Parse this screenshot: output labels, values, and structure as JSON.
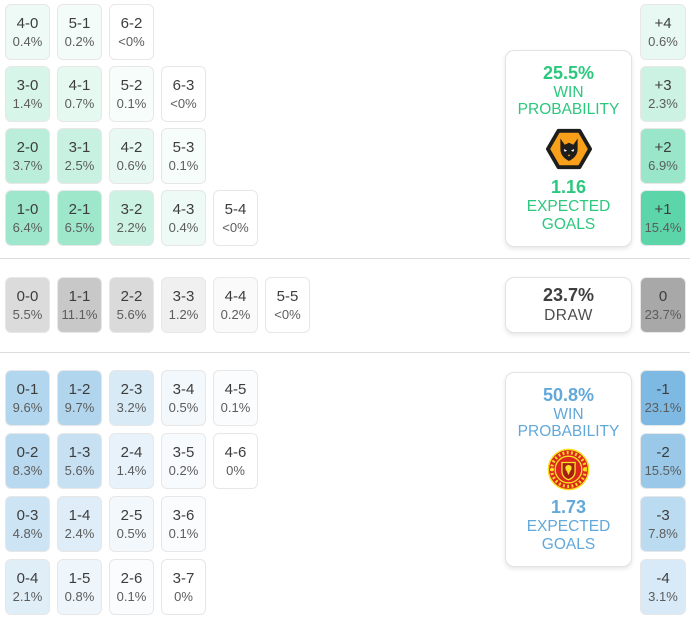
{
  "chart_data": {
    "type": "heatmap",
    "title": "Correct score probability matrix with win probabilities and expected goals",
    "layout": {
      "grid": "score cells left, goal-difference column right, summary boxes center-right"
    },
    "sections": [
      {
        "name": "home-win",
        "crest_icon": "wolves-crest",
        "accent_color": "#2bc87d",
        "cell_base_color": "#5cd6a8",
        "max_value": 15.4,
        "win_probability": "25.5%",
        "win_probability_label": [
          "WIN",
          "PROBABILITY"
        ],
        "expected_goals": "1.16",
        "expected_goals_label": [
          "EXPECTED",
          "GOALS"
        ],
        "score_rows": [
          [
            {
              "score": "4-0",
              "pct": "0.4%",
              "value": 0.4
            },
            {
              "score": "5-1",
              "pct": "0.2%",
              "value": 0.2
            },
            {
              "score": "6-2",
              "pct": "<0%",
              "value": 0
            }
          ],
          [
            {
              "score": "3-0",
              "pct": "1.4%",
              "value": 1.4
            },
            {
              "score": "4-1",
              "pct": "0.7%",
              "value": 0.7
            },
            {
              "score": "5-2",
              "pct": "0.1%",
              "value": 0.1
            },
            {
              "score": "6-3",
              "pct": "<0%",
              "value": 0
            }
          ],
          [
            {
              "score": "2-0",
              "pct": "3.7%",
              "value": 3.7
            },
            {
              "score": "3-1",
              "pct": "2.5%",
              "value": 2.5
            },
            {
              "score": "4-2",
              "pct": "0.6%",
              "value": 0.6
            },
            {
              "score": "5-3",
              "pct": "0.1%",
              "value": 0.1
            }
          ],
          [
            {
              "score": "1-0",
              "pct": "6.4%",
              "value": 6.4
            },
            {
              "score": "2-1",
              "pct": "6.5%",
              "value": 6.5
            },
            {
              "score": "3-2",
              "pct": "2.2%",
              "value": 2.2
            },
            {
              "score": "4-3",
              "pct": "0.4%",
              "value": 0.4
            },
            {
              "score": "5-4",
              "pct": "<0%",
              "value": 0
            }
          ]
        ],
        "goal_diff": [
          {
            "diff": "+4",
            "pct": "0.6%",
            "value": 0.6
          },
          {
            "diff": "+3",
            "pct": "2.3%",
            "value": 2.3
          },
          {
            "diff": "+2",
            "pct": "6.9%",
            "value": 6.9
          },
          {
            "diff": "+1",
            "pct": "15.4%",
            "value": 15.4
          }
        ]
      },
      {
        "name": "draw",
        "accent_color": "#3f3f3f",
        "cell_base_color": "#a8a8a8",
        "max_value": 23.7,
        "probability": "23.7%",
        "label": "DRAW",
        "score_rows": [
          [
            {
              "score": "0-0",
              "pct": "5.5%",
              "value": 5.5
            },
            {
              "score": "1-1",
              "pct": "11.1%",
              "value": 11.1
            },
            {
              "score": "2-2",
              "pct": "5.6%",
              "value": 5.6
            },
            {
              "score": "3-3",
              "pct": "1.2%",
              "value": 1.2
            },
            {
              "score": "4-4",
              "pct": "0.2%",
              "value": 0.2
            },
            {
              "score": "5-5",
              "pct": "<0%",
              "value": 0
            }
          ]
        ],
        "goal_diff": [
          {
            "diff": "0",
            "pct": "23.7%",
            "value": 23.7
          }
        ]
      },
      {
        "name": "away-win",
        "crest_icon": "man-united-crest",
        "accent_color": "#62a8d9",
        "cell_base_color": "#7db9e3",
        "max_value": 23.1,
        "win_probability": "50.8%",
        "win_probability_label": [
          "WIN",
          "PROBABILITY"
        ],
        "expected_goals": "1.73",
        "expected_goals_label": [
          "EXPECTED",
          "GOALS"
        ],
        "score_rows": [
          [
            {
              "score": "0-1",
              "pct": "9.6%",
              "value": 9.6
            },
            {
              "score": "1-2",
              "pct": "9.7%",
              "value": 9.7
            },
            {
              "score": "2-3",
              "pct": "3.2%",
              "value": 3.2
            },
            {
              "score": "3-4",
              "pct": "0.5%",
              "value": 0.5
            },
            {
              "score": "4-5",
              "pct": "0.1%",
              "value": 0.1
            }
          ],
          [
            {
              "score": "0-2",
              "pct": "8.3%",
              "value": 8.3
            },
            {
              "score": "1-3",
              "pct": "5.6%",
              "value": 5.6
            },
            {
              "score": "2-4",
              "pct": "1.4%",
              "value": 1.4
            },
            {
              "score": "3-5",
              "pct": "0.2%",
              "value": 0.2
            },
            {
              "score": "4-6",
              "pct": "0%",
              "value": 0
            }
          ],
          [
            {
              "score": "0-3",
              "pct": "4.8%",
              "value": 4.8
            },
            {
              "score": "1-4",
              "pct": "2.4%",
              "value": 2.4
            },
            {
              "score": "2-5",
              "pct": "0.5%",
              "value": 0.5
            },
            {
              "score": "3-6",
              "pct": "0.1%",
              "value": 0.1
            }
          ],
          [
            {
              "score": "0-4",
              "pct": "2.1%",
              "value": 2.1
            },
            {
              "score": "1-5",
              "pct": "0.8%",
              "value": 0.8
            },
            {
              "score": "2-6",
              "pct": "0.1%",
              "value": 0.1
            },
            {
              "score": "3-7",
              "pct": "0%",
              "value": 0
            }
          ]
        ],
        "goal_diff": [
          {
            "diff": "-1",
            "pct": "23.1%",
            "value": 23.1
          },
          {
            "diff": "-2",
            "pct": "15.5%",
            "value": 15.5
          },
          {
            "diff": "-3",
            "pct": "7.8%",
            "value": 7.8
          },
          {
            "diff": "-4",
            "pct": "3.1%",
            "value": 3.1
          }
        ]
      }
    ]
  }
}
